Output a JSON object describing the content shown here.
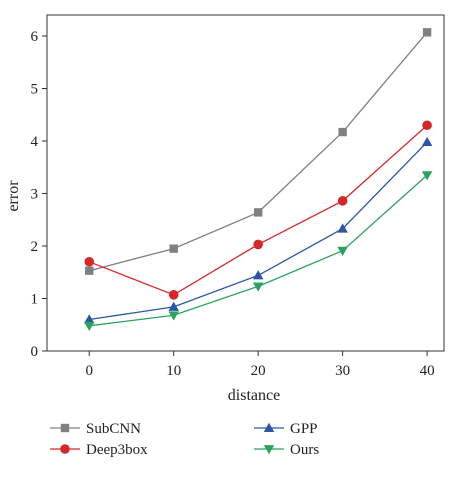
{
  "chart_data": {
    "type": "line",
    "xlabel": "distance",
    "ylabel": "error",
    "xlim": [
      -5,
      42
    ],
    "ylim": [
      0,
      6.4
    ],
    "x_ticks": [
      0,
      10,
      20,
      30,
      40
    ],
    "y_ticks": [
      0,
      1,
      2,
      3,
      4,
      5,
      6
    ],
    "x_tick_labels": [
      "0",
      "10",
      "20",
      "30",
      "40"
    ],
    "y_tick_labels": [
      "0",
      "1",
      "2",
      "3",
      "4",
      "5",
      "6"
    ],
    "grid": false,
    "legend_position": "bottom-outside",
    "x": [
      0,
      10,
      20,
      30,
      40
    ],
    "series": [
      {
        "name": "SubCNN",
        "values": [
          1.53,
          1.95,
          2.64,
          4.17,
          6.07
        ],
        "color": "#808080",
        "marker": "square"
      },
      {
        "name": "Deep3box",
        "values": [
          1.7,
          1.07,
          2.03,
          2.86,
          4.3
        ],
        "color": "#d62728",
        "marker": "circle"
      },
      {
        "name": "GPP",
        "values": [
          0.6,
          0.84,
          1.44,
          2.33,
          3.98
        ],
        "color": "#2b56a6",
        "marker": "triangle-up"
      },
      {
        "name": "Ours",
        "values": [
          0.48,
          0.68,
          1.23,
          1.91,
          3.35
        ],
        "color": "#2ca25f",
        "marker": "triangle-down"
      }
    ]
  }
}
